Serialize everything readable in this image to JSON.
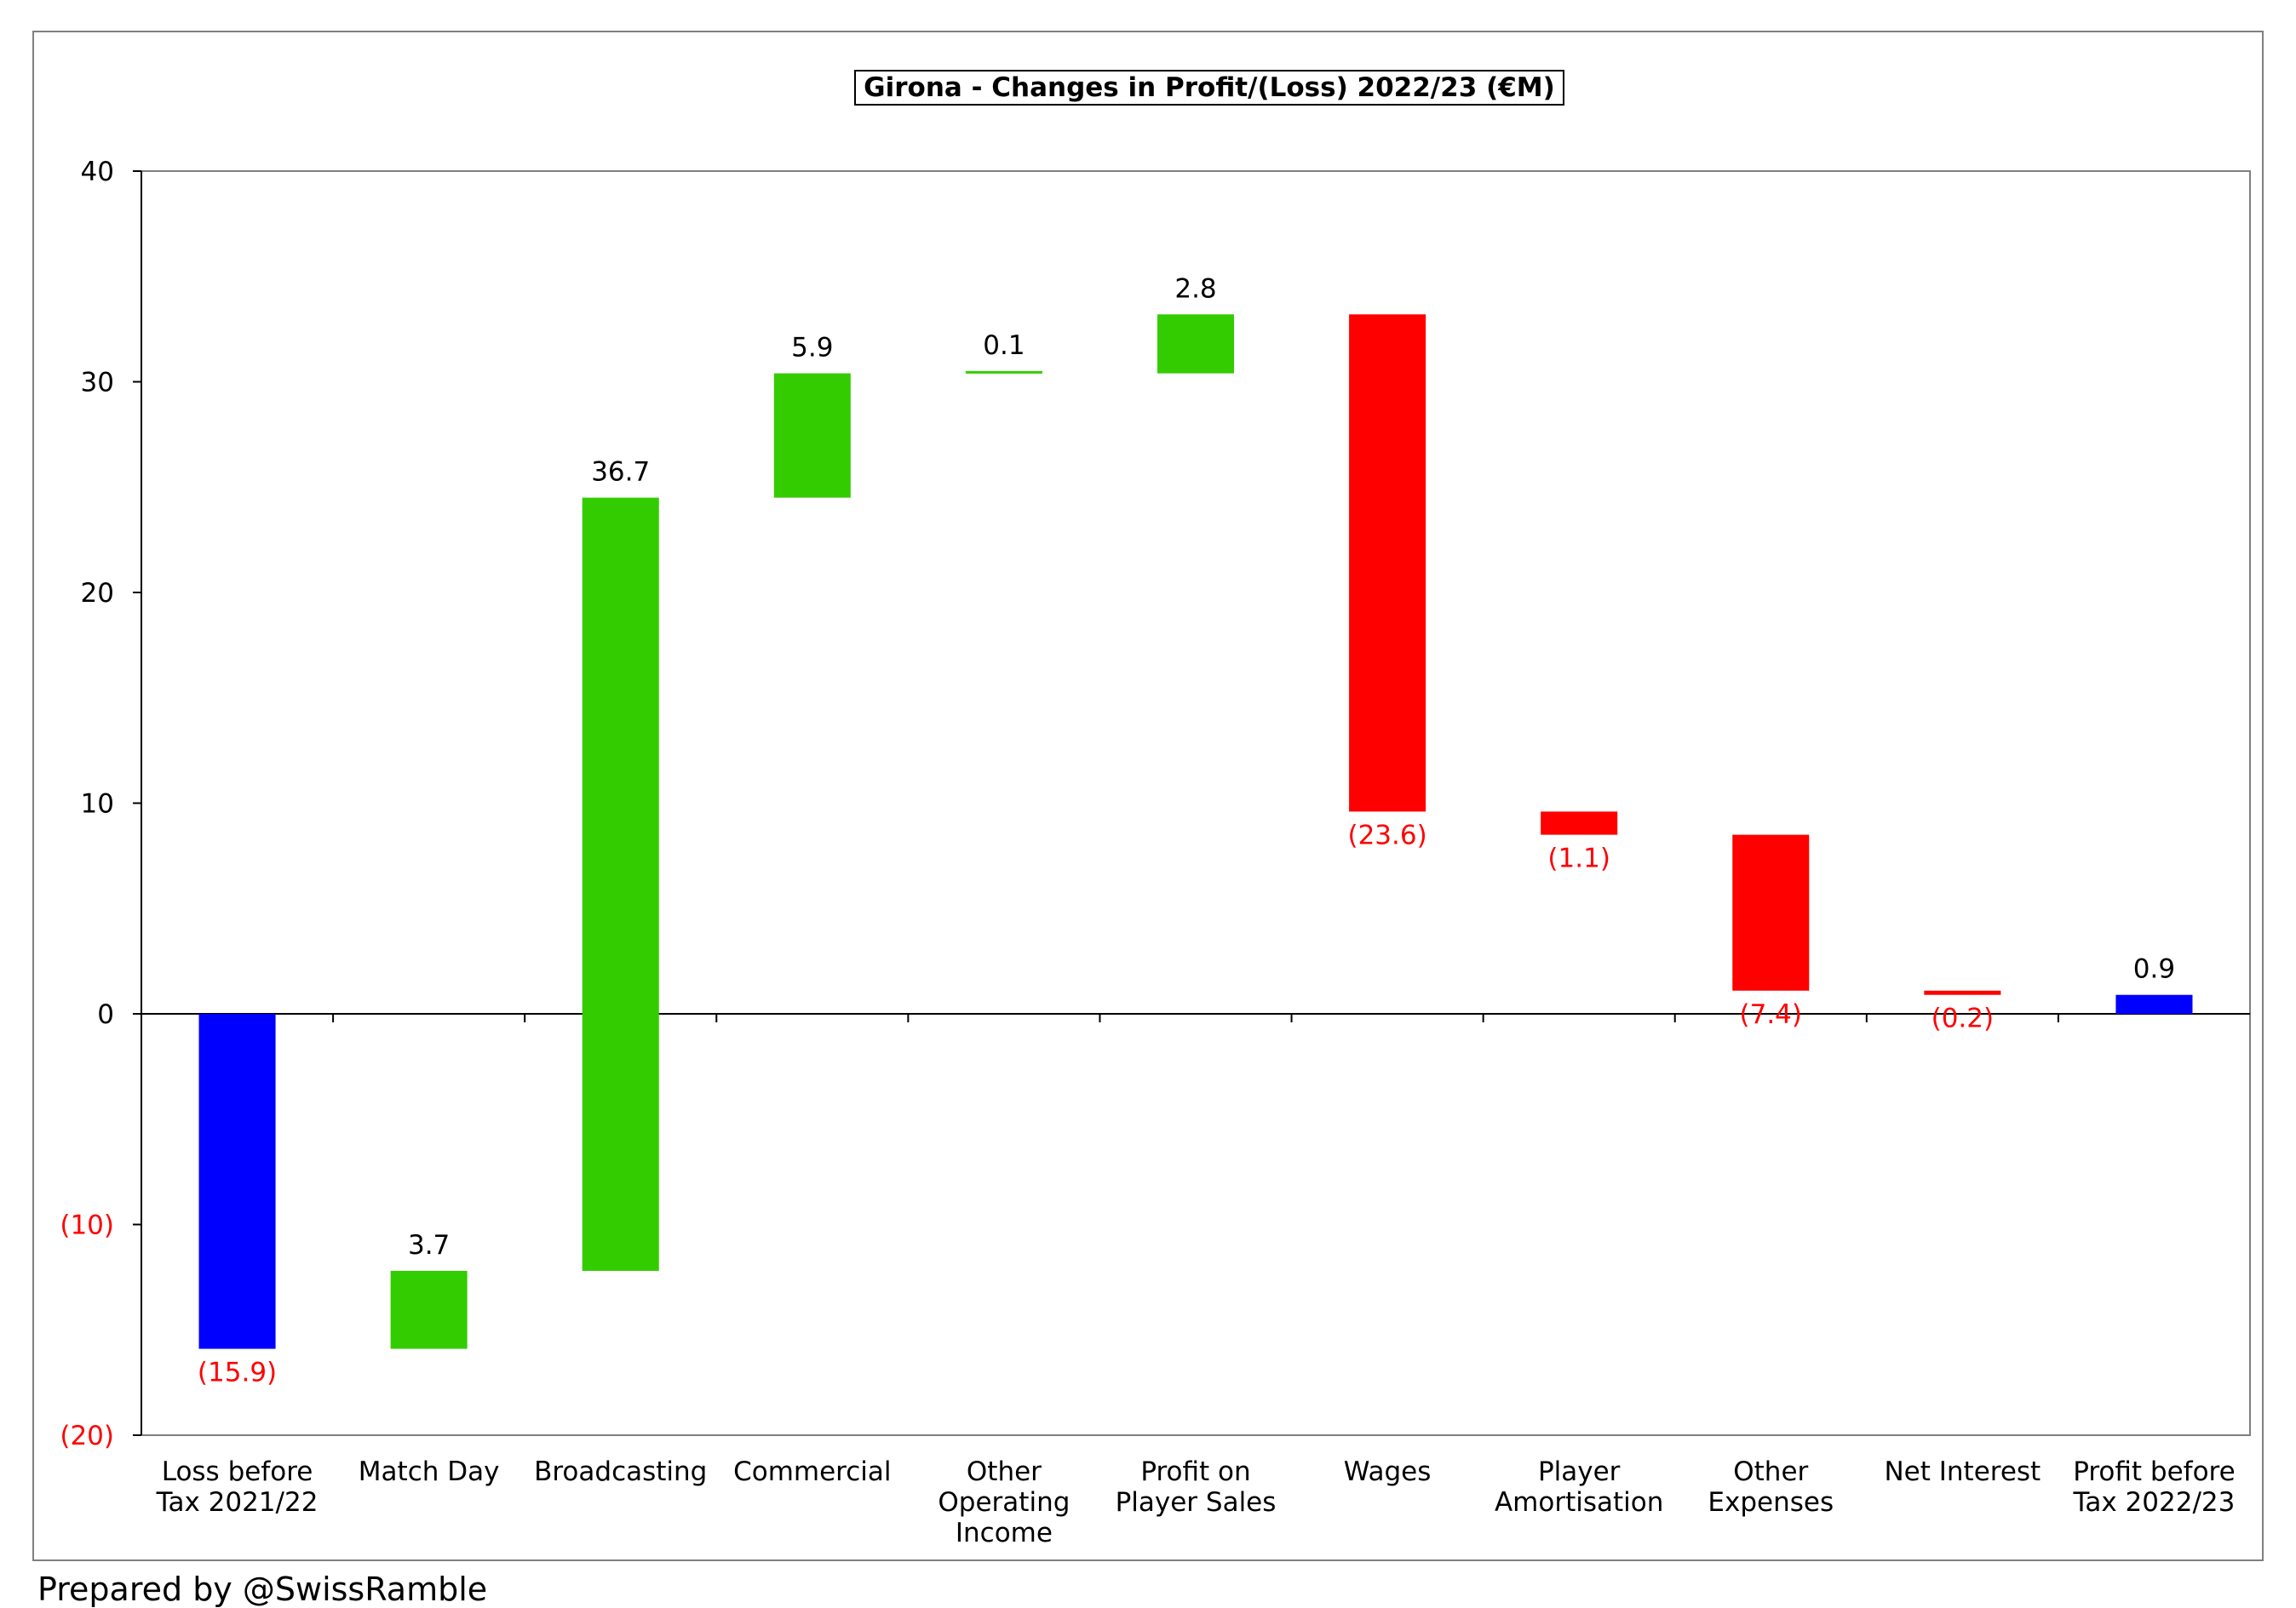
{
  "chart_data": {
    "type": "waterfall",
    "title": "Girona - Changes in Profit/(Loss) 2022/23 (€M)",
    "ylim": [
      -20,
      40
    ],
    "yticks": [
      40,
      30,
      20,
      10,
      0,
      -10,
      -20
    ],
    "ytick_labels": [
      "40",
      "30",
      "20",
      "10",
      "0",
      "(10)",
      "(20)"
    ],
    "grid": false,
    "categories": [
      [
        "Loss before",
        "Tax 2021/22"
      ],
      [
        "Match Day"
      ],
      [
        "Broadcasting"
      ],
      [
        "Commercial"
      ],
      [
        "Other",
        "Operating",
        "Income"
      ],
      [
        "Profit on",
        "Player Sales"
      ],
      [
        "Wages"
      ],
      [
        "Player",
        "Amortisation"
      ],
      [
        "Other",
        "Expenses"
      ],
      [
        "Net Interest"
      ],
      [
        "Profit before",
        "Tax 2022/23"
      ]
    ],
    "bars": [
      {
        "kind": "total",
        "start": 0,
        "end": -15.9,
        "label": "(15.9)"
      },
      {
        "kind": "increase",
        "start": -15.9,
        "end": -12.2,
        "label": "3.7"
      },
      {
        "kind": "increase",
        "start": -12.2,
        "end": 24.5,
        "label": "36.7"
      },
      {
        "kind": "increase",
        "start": 24.5,
        "end": 30.4,
        "label": "5.9"
      },
      {
        "kind": "increase",
        "start": 30.4,
        "end": 30.5,
        "label": "0.1"
      },
      {
        "kind": "increase",
        "start": 30.4,
        "end": 33.2,
        "label": "2.8"
      },
      {
        "kind": "decrease",
        "start": 33.2,
        "end": 9.6,
        "label": "(23.6)"
      },
      {
        "kind": "decrease",
        "start": 9.6,
        "end": 8.5,
        "label": "(1.1)"
      },
      {
        "kind": "decrease",
        "start": 8.5,
        "end": 1.1,
        "label": "(7.4)"
      },
      {
        "kind": "decrease",
        "start": 1.1,
        "end": 0.9,
        "label": "(0.2)"
      },
      {
        "kind": "total",
        "start": 0,
        "end": 0.9,
        "label": "0.9"
      }
    ]
  },
  "colors": {
    "total": "#0000ff",
    "increase": "#33cc00",
    "decrease": "#ff0000",
    "negative_text": "#ff0000",
    "text": "#000000"
  },
  "footer": "Prepared by @SwissRamble"
}
